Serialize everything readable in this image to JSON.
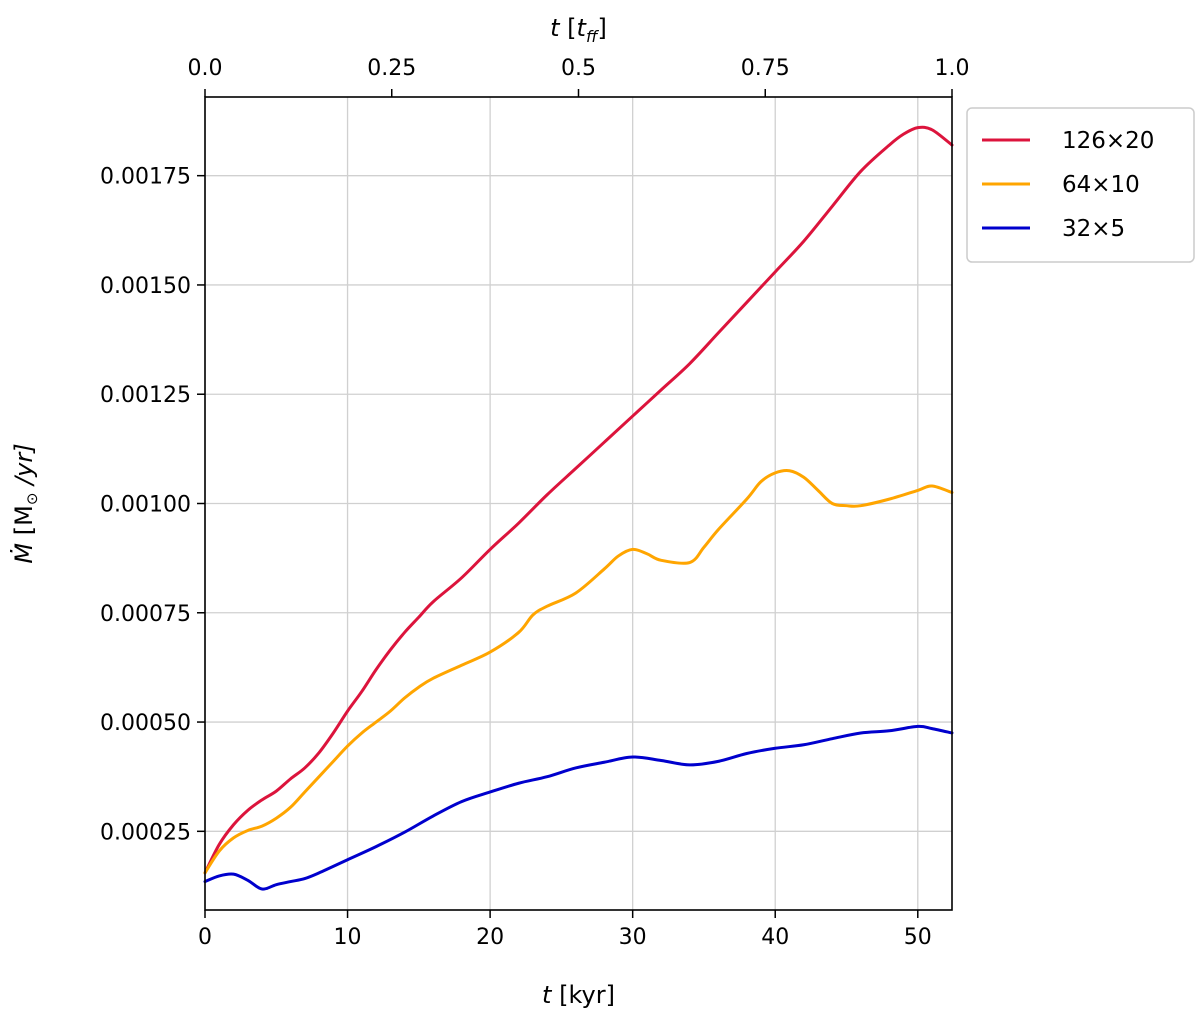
{
  "chart_data": {
    "type": "line",
    "xlabel_bottom": {
      "italic": "t",
      "rest": " [kyr]"
    },
    "xlabel_top": {
      "italic": "t",
      "open": " [",
      "sub_base": "t",
      "sub": "ff",
      "close": "]"
    },
    "ylabel": {
      "symbol": "Ṁ",
      "rest_before": " [M",
      "sun": "⊙",
      "rest_after": " /yr]"
    },
    "xlim": [
      0,
      52.4
    ],
    "ylim": [
      7e-05,
      0.00193
    ],
    "x_ticks_bottom": [
      0,
      10,
      20,
      30,
      40,
      50
    ],
    "x_tick_labels_bottom": [
      "0",
      "10",
      "20",
      "30",
      "40",
      "50"
    ],
    "x_ticks_top": [
      0,
      13.1,
      26.2,
      39.3,
      52.4
    ],
    "x_tick_labels_top": [
      "0.0",
      "0.25",
      "0.5",
      "0.75",
      "1.0"
    ],
    "y_ticks": [
      0.00025,
      0.0005,
      0.00075,
      0.001,
      0.00125,
      0.0015,
      0.00175
    ],
    "y_tick_labels": [
      "0.00025",
      "0.00050",
      "0.00075",
      "0.00100",
      "0.00125",
      "0.00150",
      "0.00175"
    ],
    "grid": true,
    "legend_position": "outside-top-right",
    "series": [
      {
        "name": "126×20",
        "color": "#dc143c",
        "x": [
          0,
          1,
          2,
          3,
          4,
          5,
          6,
          7,
          8,
          9,
          10,
          11,
          12,
          13,
          14,
          15,
          16,
          18,
          20,
          22,
          24,
          26,
          28,
          30,
          32,
          34,
          36,
          38,
          40,
          42,
          44,
          46,
          48,
          49,
          50,
          51,
          52.4
        ],
        "y": [
          0.000155,
          0.00022,
          0.000265,
          0.000298,
          0.000322,
          0.000342,
          0.00037,
          0.000395,
          0.00043,
          0.000475,
          0.000525,
          0.00057,
          0.00062,
          0.000665,
          0.000705,
          0.00074,
          0.000775,
          0.00083,
          0.000895,
          0.000955,
          0.00102,
          0.00108,
          0.00114,
          0.0012,
          0.00126,
          0.00132,
          0.00139,
          0.00146,
          0.00153,
          0.0016,
          0.00168,
          0.00176,
          0.00182,
          0.001845,
          0.00186,
          0.001855,
          0.00182
        ]
      },
      {
        "name": "64×10",
        "color": "#ffa500",
        "x": [
          0,
          1,
          2,
          3,
          4,
          5,
          6,
          7,
          8,
          9,
          10,
          11,
          12,
          13,
          14,
          15,
          16,
          18,
          20,
          22,
          23,
          24,
          26,
          28,
          29,
          30,
          31,
          32,
          34,
          35,
          36,
          38,
          39,
          40,
          41,
          42,
          43,
          44,
          45,
          46,
          48,
          50,
          51,
          52.4
        ],
        "y": [
          0.000155,
          0.000205,
          0.000235,
          0.000252,
          0.000262,
          0.00028,
          0.000305,
          0.00034,
          0.000375,
          0.00041,
          0.000445,
          0.000475,
          0.0005,
          0.000525,
          0.000555,
          0.00058,
          0.0006,
          0.00063,
          0.00066,
          0.000705,
          0.000745,
          0.000765,
          0.000795,
          0.00085,
          0.00088,
          0.000895,
          0.000885,
          0.00087,
          0.000865,
          0.0009,
          0.00094,
          0.00101,
          0.00105,
          0.00107,
          0.001075,
          0.00106,
          0.00103,
          0.001,
          0.000995,
          0.000995,
          0.00101,
          0.00103,
          0.00104,
          0.001025
        ]
      },
      {
        "name": "32×5",
        "color": "#0000cd",
        "x": [
          0,
          1,
          2,
          3,
          4,
          5,
          6,
          7,
          8,
          10,
          12,
          14,
          16,
          18,
          20,
          22,
          24,
          26,
          28,
          30,
          32,
          34,
          36,
          38,
          40,
          42,
          44,
          46,
          48,
          50,
          51,
          52.4
        ],
        "y": [
          0.000135,
          0.000148,
          0.000152,
          0.000138,
          0.000118,
          0.000128,
          0.000135,
          0.000142,
          0.000155,
          0.000185,
          0.000215,
          0.000248,
          0.000285,
          0.000318,
          0.00034,
          0.00036,
          0.000375,
          0.000395,
          0.000408,
          0.00042,
          0.000412,
          0.000402,
          0.00041,
          0.000428,
          0.00044,
          0.000448,
          0.000462,
          0.000475,
          0.00048,
          0.00049,
          0.000485,
          0.000475
        ]
      }
    ]
  }
}
